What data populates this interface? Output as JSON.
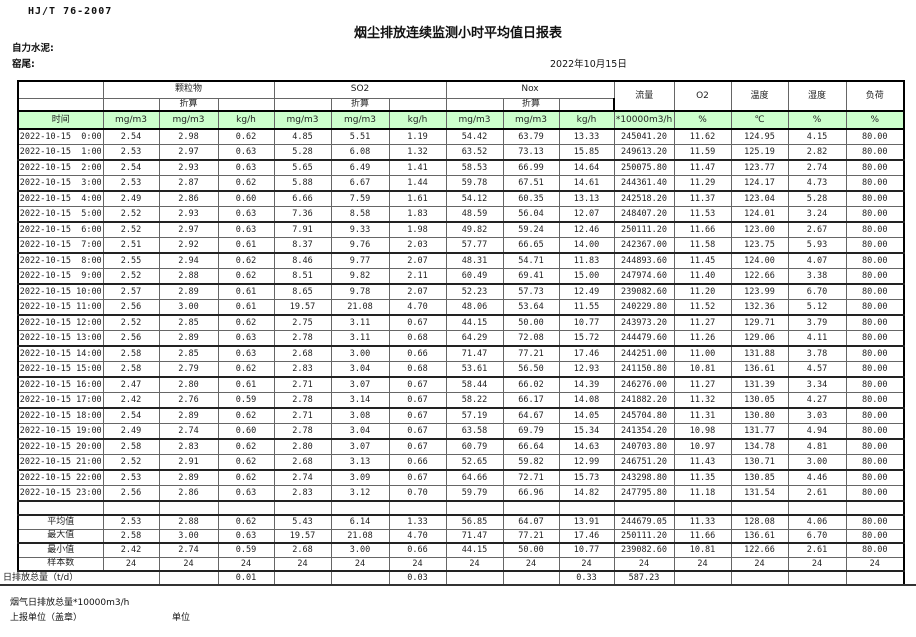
{
  "meta": {
    "standard": "HJ/T 76-2007",
    "title": "烟尘排放连续监测小时平均值日报表",
    "company": "自力水泥:",
    "site": "窑尾:",
    "date": "2022年10月15日"
  },
  "colors": {
    "header_green": "#ccffcc",
    "border_dark": "#000000"
  },
  "table": {
    "time_label": "时间",
    "groups": [
      "颗粒物",
      "SO2",
      "Nox"
    ],
    "converted_label": "折算",
    "flow_label": "流量",
    "o2_label": "O2",
    "temp_label": "温度",
    "humidity_label": "湿度",
    "load_label": "负荷",
    "units": [
      "mg/m3",
      "mg/m3",
      "kg/h",
      "mg/m3",
      "mg/m3",
      "kg/h",
      "mg/m3",
      "mg/m3",
      "kg/h",
      "*10000m3/h",
      "%",
      "℃",
      "%",
      "%"
    ],
    "rows": [
      {
        "time": "2022-10-15  0:00",
        "values": [
          "2.54",
          "2.98",
          "0.62",
          "4.85",
          "5.51",
          "1.19",
          "54.42",
          "63.79",
          "13.33",
          "245041.20",
          "11.62",
          "124.95",
          "4.15",
          "80.00"
        ]
      },
      {
        "time": "2022-10-15  1:00",
        "values": [
          "2.53",
          "2.97",
          "0.63",
          "5.28",
          "6.08",
          "1.32",
          "63.52",
          "73.13",
          "15.85",
          "249613.20",
          "11.59",
          "125.19",
          "2.82",
          "80.00"
        ]
      },
      {
        "time": "2022-10-15  2:00",
        "values": [
          "2.54",
          "2.93",
          "0.63",
          "5.65",
          "6.49",
          "1.41",
          "58.53",
          "66.99",
          "14.64",
          "250075.80",
          "11.47",
          "123.77",
          "2.74",
          "80.00"
        ]
      },
      {
        "time": "2022-10-15  3:00",
        "values": [
          "2.53",
          "2.87",
          "0.62",
          "5.88",
          "6.67",
          "1.44",
          "59.78",
          "67.51",
          "14.61",
          "244361.40",
          "11.29",
          "124.17",
          "4.73",
          "80.00"
        ]
      },
      {
        "time": "2022-10-15  4:00",
        "values": [
          "2.49",
          "2.86",
          "0.60",
          "6.66",
          "7.59",
          "1.61",
          "54.12",
          "60.35",
          "13.13",
          "242518.20",
          "11.37",
          "123.04",
          "5.28",
          "80.00"
        ]
      },
      {
        "time": "2022-10-15  5:00",
        "values": [
          "2.52",
          "2.93",
          "0.63",
          "7.36",
          "8.58",
          "1.83",
          "48.59",
          "56.04",
          "12.07",
          "248407.20",
          "11.53",
          "124.01",
          "3.24",
          "80.00"
        ]
      },
      {
        "time": "2022-10-15  6:00",
        "values": [
          "2.52",
          "2.97",
          "0.63",
          "7.91",
          "9.33",
          "1.98",
          "49.82",
          "59.24",
          "12.46",
          "250111.20",
          "11.66",
          "123.00",
          "2.67",
          "80.00"
        ]
      },
      {
        "time": "2022-10-15  7:00",
        "values": [
          "2.51",
          "2.92",
          "0.61",
          "8.37",
          "9.76",
          "2.03",
          "57.77",
          "66.65",
          "14.00",
          "242367.00",
          "11.58",
          "123.75",
          "5.93",
          "80.00"
        ]
      },
      {
        "time": "2022-10-15  8:00",
        "values": [
          "2.55",
          "2.94",
          "0.62",
          "8.46",
          "9.77",
          "2.07",
          "48.31",
          "54.71",
          "11.83",
          "244893.60",
          "11.45",
          "124.00",
          "4.07",
          "80.00"
        ]
      },
      {
        "time": "2022-10-15  9:00",
        "values": [
          "2.52",
          "2.88",
          "0.62",
          "8.51",
          "9.82",
          "2.11",
          "60.49",
          "69.41",
          "15.00",
          "247974.60",
          "11.40",
          "122.66",
          "3.38",
          "80.00"
        ]
      },
      {
        "time": "2022-10-15 10:00",
        "values": [
          "2.57",
          "2.89",
          "0.61",
          "8.65",
          "9.78",
          "2.07",
          "52.23",
          "57.73",
          "12.49",
          "239082.60",
          "11.20",
          "123.99",
          "6.70",
          "80.00"
        ]
      },
      {
        "time": "2022-10-15 11:00",
        "values": [
          "2.56",
          "3.00",
          "0.61",
          "19.57",
          "21.08",
          "4.70",
          "48.06",
          "53.64",
          "11.55",
          "240229.80",
          "11.52",
          "132.36",
          "5.12",
          "80.00"
        ]
      },
      {
        "time": "2022-10-15 12:00",
        "values": [
          "2.52",
          "2.85",
          "0.62",
          "2.75",
          "3.11",
          "0.67",
          "44.15",
          "50.00",
          "10.77",
          "243973.20",
          "11.27",
          "129.71",
          "3.79",
          "80.00"
        ]
      },
      {
        "time": "2022-10-15 13:00",
        "values": [
          "2.56",
          "2.89",
          "0.63",
          "2.78",
          "3.11",
          "0.68",
          "64.29",
          "72.08",
          "15.72",
          "244479.60",
          "11.26",
          "129.06",
          "4.11",
          "80.00"
        ]
      },
      {
        "time": "2022-10-15 14:00",
        "values": [
          "2.58",
          "2.85",
          "0.63",
          "2.68",
          "3.00",
          "0.66",
          "71.47",
          "77.21",
          "17.46",
          "244251.00",
          "11.00",
          "131.88",
          "3.78",
          "80.00"
        ]
      },
      {
        "time": "2022-10-15 15:00",
        "values": [
          "2.58",
          "2.79",
          "0.62",
          "2.83",
          "3.04",
          "0.68",
          "53.61",
          "56.50",
          "12.93",
          "241150.80",
          "10.81",
          "136.61",
          "4.57",
          "80.00"
        ]
      },
      {
        "time": "2022-10-15 16:00",
        "values": [
          "2.47",
          "2.80",
          "0.61",
          "2.71",
          "3.07",
          "0.67",
          "58.44",
          "66.02",
          "14.39",
          "246276.00",
          "11.27",
          "131.39",
          "3.34",
          "80.00"
        ]
      },
      {
        "time": "2022-10-15 17:00",
        "values": [
          "2.42",
          "2.76",
          "0.59",
          "2.78",
          "3.14",
          "0.67",
          "58.22",
          "66.17",
          "14.08",
          "241882.20",
          "11.32",
          "130.05",
          "4.27",
          "80.00"
        ]
      },
      {
        "time": "2022-10-15 18:00",
        "values": [
          "2.54",
          "2.89",
          "0.62",
          "2.71",
          "3.08",
          "0.67",
          "57.19",
          "64.67",
          "14.05",
          "245704.80",
          "11.31",
          "130.80",
          "3.03",
          "80.00"
        ]
      },
      {
        "time": "2022-10-15 19:00",
        "values": [
          "2.49",
          "2.74",
          "0.60",
          "2.78",
          "3.04",
          "0.67",
          "63.58",
          "69.79",
          "15.34",
          "241354.20",
          "10.98",
          "131.77",
          "4.94",
          "80.00"
        ]
      },
      {
        "time": "2022-10-15 20:00",
        "values": [
          "2.58",
          "2.83",
          "0.62",
          "2.80",
          "3.07",
          "0.67",
          "60.79",
          "66.64",
          "14.63",
          "240703.80",
          "10.97",
          "134.78",
          "4.81",
          "80.00"
        ]
      },
      {
        "time": "2022-10-15 21:00",
        "values": [
          "2.52",
          "2.91",
          "0.62",
          "2.68",
          "3.13",
          "0.66",
          "52.65",
          "59.82",
          "12.99",
          "246751.20",
          "11.43",
          "130.71",
          "3.00",
          "80.00"
        ]
      },
      {
        "time": "2022-10-15 22:00",
        "values": [
          "2.53",
          "2.89",
          "0.62",
          "2.74",
          "3.09",
          "0.67",
          "64.66",
          "72.71",
          "15.73",
          "243298.80",
          "11.35",
          "130.85",
          "4.46",
          "80.00"
        ]
      },
      {
        "time": "2022-10-15 23:00",
        "values": [
          "2.56",
          "2.86",
          "0.63",
          "2.83",
          "3.12",
          "0.70",
          "59.79",
          "66.96",
          "14.82",
          "247795.80",
          "11.18",
          "131.54",
          "2.61",
          "80.00"
        ]
      }
    ],
    "summary": [
      {
        "label": "平均值",
        "values": [
          "2.53",
          "2.88",
          "0.62",
          "5.43",
          "6.14",
          "1.33",
          "56.85",
          "64.07",
          "13.91",
          "244679.05",
          "11.33",
          "128.08",
          "4.06",
          "80.00"
        ]
      },
      {
        "label": "最大值",
        "values": [
          "2.58",
          "3.00",
          "0.63",
          "19.57",
          "21.08",
          "4.70",
          "71.47",
          "77.21",
          "17.46",
          "250111.20",
          "11.66",
          "136.61",
          "6.70",
          "80.00"
        ]
      },
      {
        "label": "最小值",
        "values": [
          "2.42",
          "2.74",
          "0.59",
          "2.68",
          "3.00",
          "0.66",
          "44.15",
          "50.00",
          "10.77",
          "239082.60",
          "10.81",
          "122.66",
          "2.61",
          "80.00"
        ]
      },
      {
        "label": "样本数",
        "values": [
          "24",
          "24",
          "24",
          "24",
          "24",
          "24",
          "24",
          "24",
          "24",
          "24",
          "24",
          "24",
          "24",
          "24"
        ]
      }
    ],
    "daily_total": {
      "label": "日排放总量（t/d）",
      "values": [
        "",
        "0.01",
        "",
        "",
        "0.03",
        "",
        "",
        "0.33",
        "587.23",
        "",
        "",
        "",
        ""
      ]
    }
  },
  "footer": {
    "flue_total": "烟气日排放总量*10000m3/h",
    "report_unit": "上报单位（盖章）",
    "unit": "单位"
  }
}
